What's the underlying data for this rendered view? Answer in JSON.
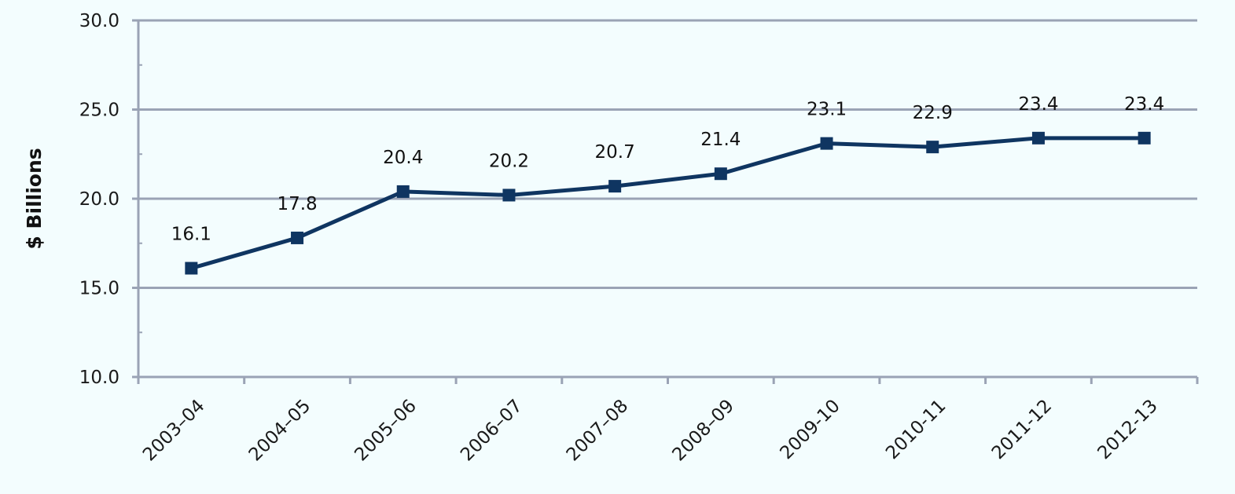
{
  "chart_data": {
    "type": "line",
    "title": "",
    "xlabel": "",
    "ylabel": "$ Billions",
    "categories": [
      "2003–04",
      "2004–05",
      "2005–06",
      "2006–07",
      "2007–08",
      "2008–09",
      "2009-10",
      "2010-11",
      "2011-12",
      "2012-13"
    ],
    "values": [
      16.1,
      17.8,
      20.4,
      20.2,
      20.7,
      21.4,
      23.1,
      22.9,
      23.4,
      23.4
    ],
    "data_labels": [
      "16.1",
      "17.8",
      "20.4",
      "20.2",
      "20.7",
      "21.4",
      "23.1",
      "22.9",
      "23.4",
      "23.4"
    ],
    "y_ticks": [
      "10.0",
      "15.0",
      "20.0",
      "25.0",
      "30.0"
    ],
    "ylim": [
      10,
      30
    ],
    "grid": true,
    "legend": "none",
    "colors": {
      "line": "#0f3561",
      "marker": "#0f3561",
      "axis": "#9aa3b5",
      "grid": "#9aa3b5",
      "background": "#f3fdfe"
    }
  }
}
